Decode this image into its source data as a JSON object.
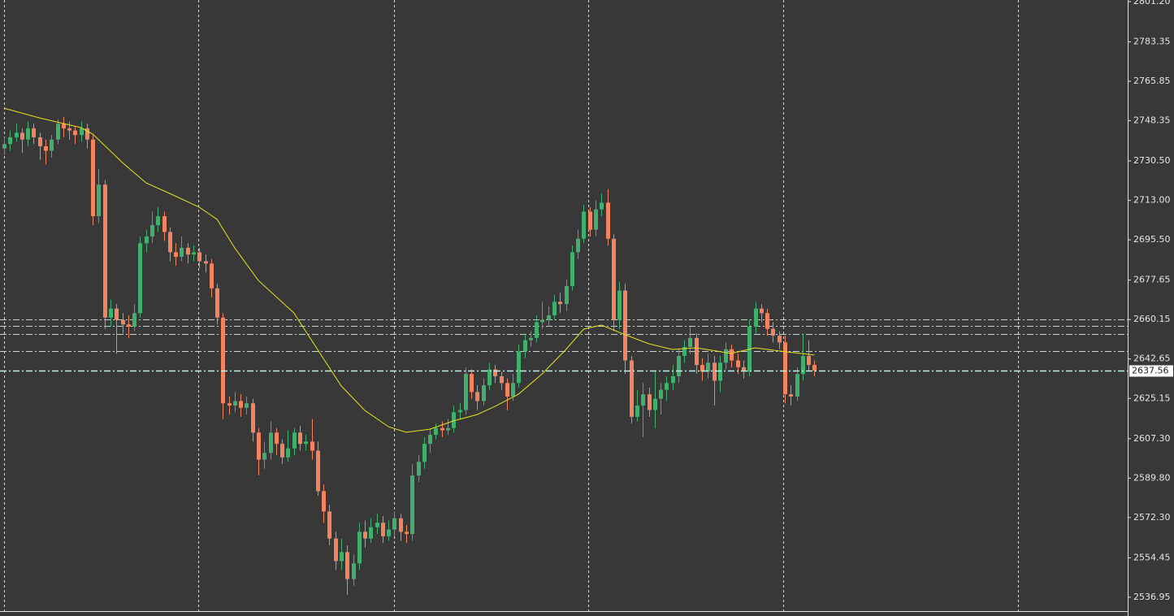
{
  "chart_data": {
    "type": "candlestick",
    "up_color": "#41b06e",
    "down_color": "#f4845f",
    "open": [
      2736,
      2738,
      2741,
      2743,
      2740,
      2745,
      2741,
      2737,
      2735,
      2740,
      2747,
      2745,
      2744,
      2742,
      2745,
      2740,
      2706,
      2720,
      2661,
      2665,
      2660,
      2658,
      2657,
      2663,
      2694,
      2697,
      2702,
      2706,
      2699,
      2690,
      2688,
      2692,
      2689,
      2690,
      2686,
      2685,
      2674,
      2661,
      2623,
      2622,
      2624,
      2621,
      2623,
      2610,
      2598,
      2601,
      2610,
      2605,
      2599,
      2603,
      2610,
      2605,
      2606,
      2602,
      2584,
      2575,
      2563,
      2553,
      2557,
      2545,
      2552,
      2566,
      2563,
      2568,
      2570,
      2564,
      2567,
      2572,
      2566,
      2565,
      2591,
      2597,
      2605,
      2609,
      2612,
      2611,
      2612,
      2619,
      2620,
      2636,
      2628,
      2624,
      2631,
      2638,
      2635,
      2632,
      2626,
      2632,
      2646,
      2651,
      2652,
      2659,
      2660,
      2662,
      2668,
      2667,
      2675,
      2690,
      2696,
      2708,
      2700,
      2709,
      2712,
      2696,
      2660,
      2673,
      2642,
      2617,
      2622,
      2627,
      2620,
      2625,
      2629,
      2632,
      2635,
      2644,
      2648,
      2652,
      2640,
      2637,
      2641,
      2633,
      2641,
      2647,
      2642,
      2639,
      2637,
      2657,
      2665,
      2663,
      2656,
      2653,
      2650,
      2627,
      2626,
      2636,
      2644,
      2640
    ],
    "high": [
      2741,
      2744,
      2747,
      2745,
      2748,
      2747,
      2743,
      2740,
      2742,
      2749,
      2750,
      2748,
      2746,
      2748,
      2747,
      2742,
      2727,
      2722,
      2669,
      2667,
      2663,
      2662,
      2667,
      2697,
      2700,
      2708,
      2710,
      2708,
      2701,
      2694,
      2697,
      2694,
      2693,
      2692,
      2689,
      2687,
      2676,
      2663,
      2626,
      2628,
      2627,
      2626,
      2625,
      2612,
      2606,
      2615,
      2612,
      2607,
      2611,
      2612,
      2613,
      2609,
      2616,
      2606,
      2587,
      2578,
      2566,
      2563,
      2560,
      2556,
      2570,
      2571,
      2572,
      2574,
      2573,
      2571,
      2575,
      2574,
      2569,
      2596,
      2600,
      2608,
      2612,
      2614,
      2615,
      2616,
      2622,
      2623,
      2639,
      2638,
      2631,
      2634,
      2641,
      2640,
      2637,
      2634,
      2636,
      2649,
      2654,
      2655,
      2662,
      2668,
      2666,
      2671,
      2672,
      2678,
      2693,
      2700,
      2711,
      2710,
      2713,
      2716,
      2718,
      2698,
      2677,
      2676,
      2644,
      2629,
      2632,
      2630,
      2637,
      2632,
      2635,
      2640,
      2647,
      2651,
      2657,
      2654,
      2643,
      2645,
      2644,
      2644,
      2650,
      2649,
      2645,
      2642,
      2660,
      2668,
      2667,
      2665,
      2659,
      2655,
      2653,
      2631,
      2639,
      2654,
      2651,
      2642
    ],
    "low": [
      2733,
      2735,
      2739,
      2734,
      2737,
      2738,
      2731,
      2729,
      2732,
      2738,
      2741,
      2740,
      2738,
      2739,
      2736,
      2702,
      2703,
      2656,
      2657,
      2645,
      2654,
      2652,
      2655,
      2661,
      2690,
      2694,
      2699,
      2695,
      2686,
      2684,
      2686,
      2685,
      2686,
      2683,
      2681,
      2670,
      2658,
      2616,
      2618,
      2619,
      2617,
      2618,
      2606,
      2591,
      2594,
      2598,
      2600,
      2596,
      2597,
      2600,
      2602,
      2602,
      2598,
      2582,
      2570,
      2560,
      2549,
      2549,
      2538,
      2542,
      2549,
      2559,
      2561,
      2565,
      2561,
      2562,
      2564,
      2562,
      2561,
      2562,
      2588,
      2594,
      2601,
      2607,
      2608,
      2609,
      2610,
      2616,
      2618,
      2625,
      2620,
      2622,
      2629,
      2632,
      2629,
      2620,
      2624,
      2630,
      2643,
      2648,
      2650,
      2656,
      2657,
      2660,
      2663,
      2664,
      2673,
      2687,
      2694,
      2697,
      2697,
      2706,
      2693,
      2655,
      2656,
      2636,
      2614,
      2615,
      2608,
      2617,
      2612,
      2618,
      2624,
      2629,
      2632,
      2641,
      2645,
      2636,
      2633,
      2634,
      2622,
      2628,
      2638,
      2639,
      2636,
      2634,
      2635,
      2654,
      2659,
      2653,
      2650,
      2647,
      2623,
      2622,
      2624,
      2633,
      2637,
      2635
    ],
    "close": [
      2738,
      2741,
      2743,
      2740,
      2745,
      2741,
      2737,
      2735,
      2740,
      2747,
      2745,
      2744,
      2742,
      2745,
      2740,
      2706,
      2720,
      2661,
      2665,
      2660,
      2658,
      2657,
      2663,
      2694,
      2697,
      2702,
      2706,
      2699,
      2690,
      2688,
      2692,
      2689,
      2690,
      2686,
      2685,
      2674,
      2661,
      2623,
      2622,
      2624,
      2621,
      2623,
      2610,
      2598,
      2601,
      2610,
      2605,
      2599,
      2603,
      2610,
      2605,
      2606,
      2602,
      2584,
      2575,
      2563,
      2553,
      2557,
      2545,
      2552,
      2566,
      2563,
      2568,
      2570,
      2564,
      2567,
      2572,
      2566,
      2565,
      2591,
      2597,
      2605,
      2609,
      2612,
      2611,
      2612,
      2619,
      2620,
      2636,
      2628,
      2624,
      2631,
      2638,
      2635,
      2632,
      2626,
      2632,
      2646,
      2651,
      2652,
      2659,
      2660,
      2662,
      2668,
      2667,
      2675,
      2690,
      2696,
      2708,
      2700,
      2709,
      2712,
      2696,
      2660,
      2673,
      2642,
      2617,
      2622,
      2627,
      2620,
      2625,
      2629,
      2632,
      2635,
      2644,
      2648,
      2652,
      2640,
      2637,
      2641,
      2633,
      2641,
      2647,
      2642,
      2639,
      2637,
      2657,
      2665,
      2663,
      2656,
      2653,
      2650,
      2627,
      2626,
      2636,
      2644,
      2640,
      2637.56
    ],
    "ma": {
      "color": "#e8e31a",
      "x": [
        0,
        6,
        13,
        15,
        20,
        24,
        28,
        33,
        36,
        39,
        43,
        49,
        53,
        57,
        61,
        65,
        68,
        72,
        76,
        80,
        83,
        87,
        91,
        95,
        98,
        101,
        105,
        109,
        113,
        117,
        123,
        127,
        131,
        137
      ],
      "values": [
        2753.9,
        2749.6,
        2745.3,
        2742.4,
        2729.8,
        2720.8,
        2716.1,
        2710,
        2704.6,
        2691.9,
        2677.5,
        2663.1,
        2646.9,
        2630.7,
        2619.8,
        2612.6,
        2610.1,
        2611.5,
        2615.2,
        2618,
        2621.6,
        2627.1,
        2636.1,
        2646.9,
        2655.9,
        2657.7,
        2653.4,
        2649.4,
        2646.9,
        2647.6,
        2645.1,
        2647.6,
        2646.2,
        2644.4
      ]
    },
    "levels": [
      2660.3,
      2657.2,
      2653.9,
      2646.0
    ],
    "last_price": 2637.56,
    "ylim": [
      2530.8,
      2801.9
    ],
    "yticks": [
      2536.95,
      2554.45,
      {
        "value": 2572.3,
        "label": "2572.30"
      },
      {
        "value": 2589.8,
        "label": "2589.80"
      },
      {
        "value": 2607.3,
        "label": "2607.30"
      },
      2625.15,
      2642.65,
      2660.15,
      2677.65,
      {
        "value": 2695.5,
        "label": "2695.50"
      },
      {
        "value": 2713,
        "label": "2713.00"
      },
      {
        "value": 2730.5,
        "label": "2730.50"
      },
      2748.35,
      2765.85,
      2783.35,
      {
        "value": 2801.2,
        "label": "2801.20"
      }
    ]
  }
}
